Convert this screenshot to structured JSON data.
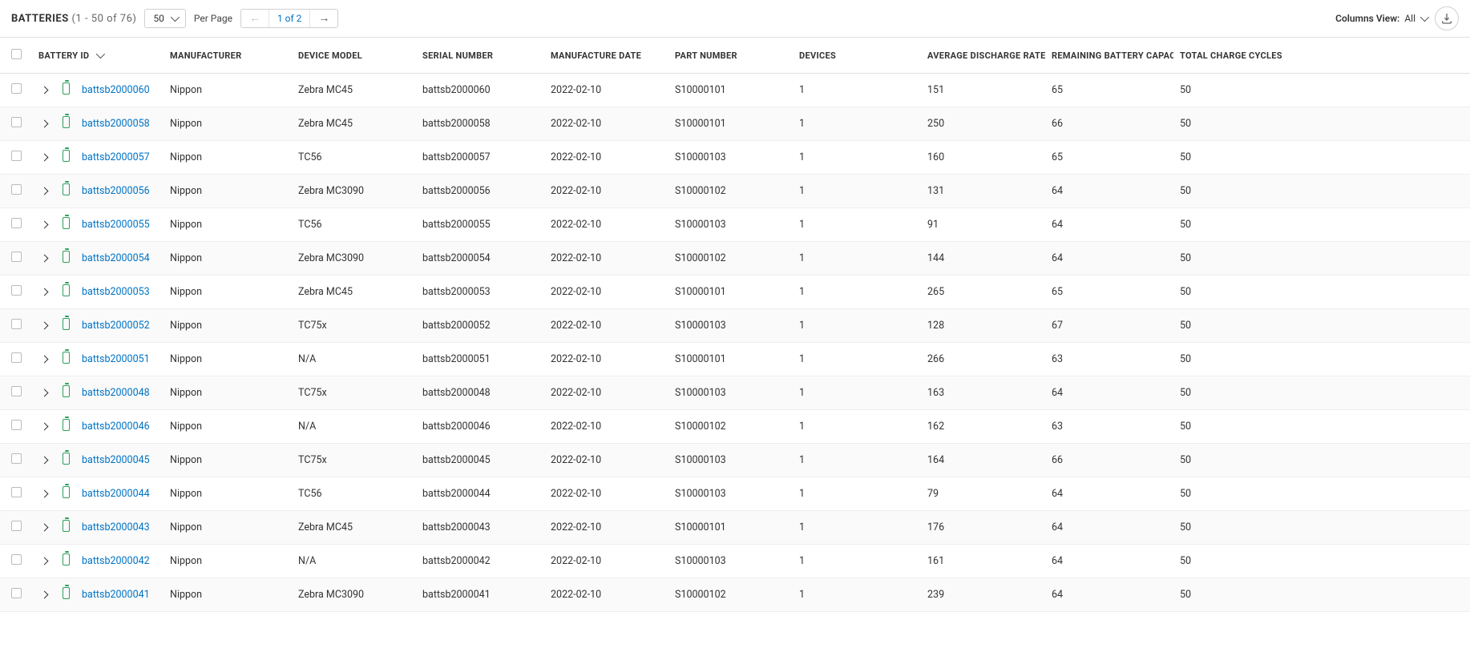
{
  "toolbar": {
    "title": "BATTERIES",
    "range": "(1 - 50 of 76)",
    "page_size": "50",
    "per_page_label": "Per Page",
    "page_info": "1 of 2",
    "columns_view_label": "Columns View:",
    "columns_view_value": "All"
  },
  "columns": {
    "battery_id": "BATTERY ID",
    "manufacturer": "MANUFACTURER",
    "device_model": "DEVICE MODEL",
    "serial_number": "SERIAL NUMBER",
    "manufacture_date": "MANUFACTURE DATE",
    "part_number": "PART NUMBER",
    "devices": "DEVICES",
    "avg_discharge": "AVERAGE DISCHARGE RATE",
    "remaining_cap": "REMAINING BATTERY CAPACITY",
    "total_charge": "TOTAL CHARGE CYCLES"
  },
  "rows": [
    {
      "id": "battsb2000060",
      "mfr": "Nippon",
      "model": "Zebra MC45",
      "serial": "battsb2000060",
      "date": "2022-02-10",
      "part": "S10000101",
      "dev": "1",
      "avg": "151",
      "rem": "65",
      "tot": "50"
    },
    {
      "id": "battsb2000058",
      "mfr": "Nippon",
      "model": "Zebra MC45",
      "serial": "battsb2000058",
      "date": "2022-02-10",
      "part": "S10000101",
      "dev": "1",
      "avg": "250",
      "rem": "66",
      "tot": "50"
    },
    {
      "id": "battsb2000057",
      "mfr": "Nippon",
      "model": "TC56",
      "serial": "battsb2000057",
      "date": "2022-02-10",
      "part": "S10000103",
      "dev": "1",
      "avg": "160",
      "rem": "65",
      "tot": "50"
    },
    {
      "id": "battsb2000056",
      "mfr": "Nippon",
      "model": "Zebra MC3090",
      "serial": "battsb2000056",
      "date": "2022-02-10",
      "part": "S10000102",
      "dev": "1",
      "avg": "131",
      "rem": "64",
      "tot": "50"
    },
    {
      "id": "battsb2000055",
      "mfr": "Nippon",
      "model": "TC56",
      "serial": "battsb2000055",
      "date": "2022-02-10",
      "part": "S10000103",
      "dev": "1",
      "avg": "91",
      "rem": "64",
      "tot": "50"
    },
    {
      "id": "battsb2000054",
      "mfr": "Nippon",
      "model": "Zebra MC3090",
      "serial": "battsb2000054",
      "date": "2022-02-10",
      "part": "S10000102",
      "dev": "1",
      "avg": "144",
      "rem": "64",
      "tot": "50"
    },
    {
      "id": "battsb2000053",
      "mfr": "Nippon",
      "model": "Zebra MC45",
      "serial": "battsb2000053",
      "date": "2022-02-10",
      "part": "S10000101",
      "dev": "1",
      "avg": "265",
      "rem": "65",
      "tot": "50"
    },
    {
      "id": "battsb2000052",
      "mfr": "Nippon",
      "model": "TC75x",
      "serial": "battsb2000052",
      "date": "2022-02-10",
      "part": "S10000103",
      "dev": "1",
      "avg": "128",
      "rem": "67",
      "tot": "50"
    },
    {
      "id": "battsb2000051",
      "mfr": "Nippon",
      "model": "N/A",
      "serial": "battsb2000051",
      "date": "2022-02-10",
      "part": "S10000101",
      "dev": "1",
      "avg": "266",
      "rem": "63",
      "tot": "50"
    },
    {
      "id": "battsb2000048",
      "mfr": "Nippon",
      "model": "TC75x",
      "serial": "battsb2000048",
      "date": "2022-02-10",
      "part": "S10000103",
      "dev": "1",
      "avg": "163",
      "rem": "64",
      "tot": "50"
    },
    {
      "id": "battsb2000046",
      "mfr": "Nippon",
      "model": "N/A",
      "serial": "battsb2000046",
      "date": "2022-02-10",
      "part": "S10000102",
      "dev": "1",
      "avg": "162",
      "rem": "63",
      "tot": "50"
    },
    {
      "id": "battsb2000045",
      "mfr": "Nippon",
      "model": "TC75x",
      "serial": "battsb2000045",
      "date": "2022-02-10",
      "part": "S10000103",
      "dev": "1",
      "avg": "164",
      "rem": "66",
      "tot": "50"
    },
    {
      "id": "battsb2000044",
      "mfr": "Nippon",
      "model": "TC56",
      "serial": "battsb2000044",
      "date": "2022-02-10",
      "part": "S10000103",
      "dev": "1",
      "avg": "79",
      "rem": "64",
      "tot": "50"
    },
    {
      "id": "battsb2000043",
      "mfr": "Nippon",
      "model": "Zebra MC45",
      "serial": "battsb2000043",
      "date": "2022-02-10",
      "part": "S10000101",
      "dev": "1",
      "avg": "176",
      "rem": "64",
      "tot": "50"
    },
    {
      "id": "battsb2000042",
      "mfr": "Nippon",
      "model": "N/A",
      "serial": "battsb2000042",
      "date": "2022-02-10",
      "part": "S10000103",
      "dev": "1",
      "avg": "161",
      "rem": "64",
      "tot": "50"
    },
    {
      "id": "battsb2000041",
      "mfr": "Nippon",
      "model": "Zebra MC3090",
      "serial": "battsb2000041",
      "date": "2022-02-10",
      "part": "S10000102",
      "dev": "1",
      "avg": "239",
      "rem": "64",
      "tot": "50"
    }
  ]
}
